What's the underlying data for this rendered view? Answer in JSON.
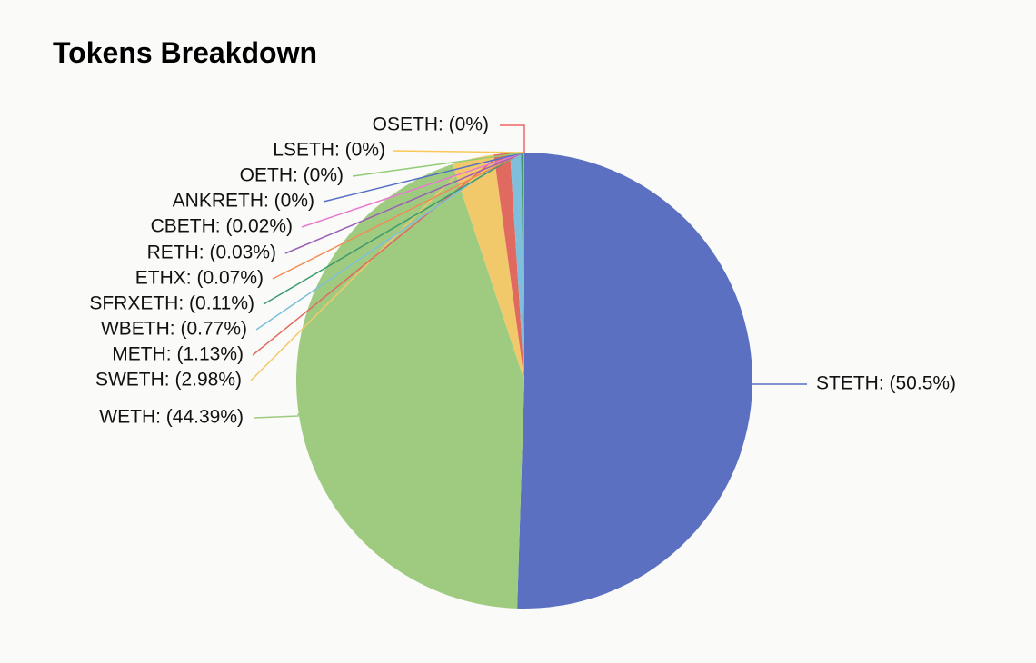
{
  "chart_data": {
    "type": "pie",
    "title": "Tokens Breakdown",
    "slices": [
      {
        "name": "STETH",
        "label": "STETH: (50.5%)",
        "value": 50.5,
        "color": "#5b70c0"
      },
      {
        "name": "WETH",
        "label": "WETH: (44.39%)",
        "value": 44.39,
        "color": "#9fcb81"
      },
      {
        "name": "SWETH",
        "label": "SWETH: (2.98%)",
        "value": 2.98,
        "color": "#f2c96a"
      },
      {
        "name": "METH",
        "label": "METH: (1.13%)",
        "value": 1.13,
        "color": "#e06a5f"
      },
      {
        "name": "WBETH",
        "label": "WBETH: (0.77%)",
        "value": 0.77,
        "color": "#7fbfdc"
      },
      {
        "name": "SFRXETH",
        "label": "SFRXETH: (0.11%)",
        "value": 0.11,
        "color": "#3e9a6e"
      },
      {
        "name": "ETHX",
        "label": "ETHX: (0.07%)",
        "value": 0.07,
        "color": "#f08c55"
      },
      {
        "name": "RETH",
        "label": "RETH: (0.03%)",
        "value": 0.03,
        "color": "#9a60b4"
      },
      {
        "name": "CBETH",
        "label": "CBETH: (0.02%)",
        "value": 0.02,
        "color": "#e87bd0"
      },
      {
        "name": "ANKRETH",
        "label": "ANKRETH: (0%)",
        "value": 0,
        "color": "#5470c6"
      },
      {
        "name": "OETH",
        "label": "OETH: (0%)",
        "value": 0,
        "color": "#91cc75"
      },
      {
        "name": "LSETH",
        "label": "LSETH: (0%)",
        "value": 0,
        "color": "#fac858"
      },
      {
        "name": "OSETH",
        "label": "OSETH: (0%)",
        "value": 0,
        "color": "#ee6666"
      }
    ],
    "start_angle": "12 o'clock",
    "direction": "clockwise"
  }
}
